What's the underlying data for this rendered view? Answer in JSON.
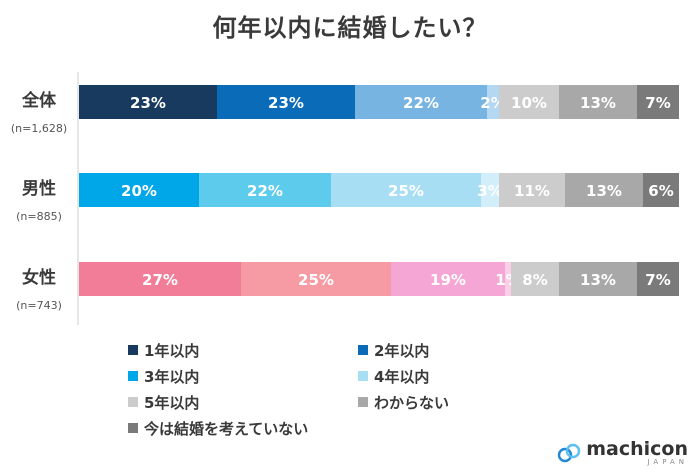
{
  "chart_data": {
    "type": "bar",
    "orientation": "horizontal",
    "stacked": true,
    "title": "何年以内に結婚したい？",
    "categories": [
      "全体",
      "男性",
      "女性"
    ],
    "category_notes": [
      "(n=1,628)",
      "(n=885)",
      "(n=743)"
    ],
    "xlim": [
      0,
      100
    ],
    "grid": false,
    "legend_position": "bottom",
    "series": [
      {
        "name": "1年以内",
        "values": [
          23,
          20,
          27
        ],
        "colors": [
          "#173a5e",
          "#00a7e8",
          "#f27d99"
        ]
      },
      {
        "name": "2年以内",
        "values": [
          23,
          22,
          25
        ],
        "colors": [
          "#0a6bb8",
          "#5ccbec",
          "#f69aa4"
        ]
      },
      {
        "name": "3年以内",
        "values": [
          22,
          25,
          19
        ],
        "colors": [
          "#77b4e2",
          "#a8def4",
          "#f6a6d4"
        ]
      },
      {
        "name": "4年以内",
        "values": [
          2,
          3,
          1
        ],
        "colors": [
          "#b4d8f2",
          "#d2eefa",
          "#fad0e6"
        ]
      },
      {
        "name": "5年以内",
        "values": [
          10,
          11,
          8
        ],
        "colors": [
          "#cccccc",
          "#cccccc",
          "#cccccc"
        ]
      },
      {
        "name": "わからない",
        "values": [
          13,
          13,
          13
        ],
        "colors": [
          "#a8a8a8",
          "#a8a8a8",
          "#a8a8a8"
        ]
      },
      {
        "name": "今は結婚を考えていない",
        "values": [
          7,
          6,
          7
        ],
        "colors": [
          "#7a7a7a",
          "#7a7a7a",
          "#7a7a7a"
        ]
      }
    ],
    "value_labels": [
      [
        "23%",
        "23%",
        "22%",
        "2%",
        "10%",
        "13%",
        "7%"
      ],
      [
        "20%",
        "22%",
        "25%",
        "3%",
        "11%",
        "13%",
        "6%"
      ],
      [
        "27%",
        "25%",
        "19%",
        "1%",
        "8%",
        "13%",
        "7%"
      ]
    ],
    "legend": [
      {
        "label": "1年以内",
        "color": "#173a5e"
      },
      {
        "label": "2年以内",
        "color": "#0a6bb8"
      },
      {
        "label": "3年以内",
        "color": "#00a7e8"
      },
      {
        "label": "4年以内",
        "color": "#a8def4"
      },
      {
        "label": "5年以内",
        "color": "#cccccc"
      },
      {
        "label": "わからない",
        "color": "#a8a8a8"
      },
      {
        "label": "今は結婚を考えていない",
        "color": "#7a7a7a"
      }
    ]
  },
  "brand": {
    "name": "machicon",
    "sub": "JAPAN"
  }
}
